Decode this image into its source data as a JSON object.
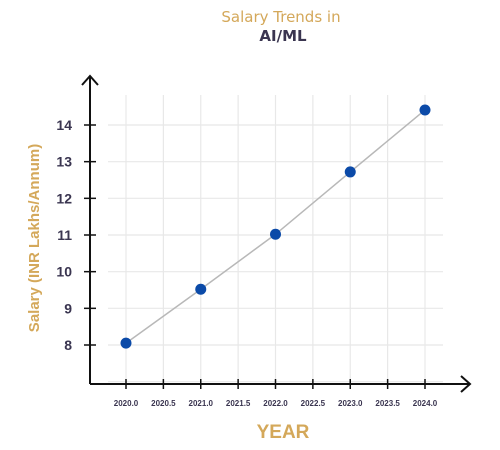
{
  "chart_data": {
    "type": "line",
    "title": "Salary Trends in",
    "subtitle": "AI/ML",
    "xlabel": "YEAR",
    "ylabel": "Salary (INR Lakhs/Annum)",
    "x": [
      2020.0,
      2021.0,
      2022.0,
      2023.0,
      2024.0
    ],
    "series": [
      {
        "values": [
          8.05,
          9.52,
          11.02,
          12.72,
          14.41
        ]
      }
    ],
    "xticks": [
      "2020.0",
      "2020.5",
      "2021.0",
      "2021.5",
      "2022.0",
      "2022.5",
      "2023.0",
      "2023.5",
      "2024.0"
    ],
    "yticks": [
      "8",
      "9",
      "10",
      "11",
      "12",
      "13",
      "14"
    ],
    "xlim": [
      2019.8,
      2024.2
    ],
    "ylim": [
      7.6,
      14.7
    ],
    "grid": true,
    "colors": {
      "line": "#b8b8b8",
      "marker": "#0b4aa8",
      "title": "#d4a85a",
      "subtitle": "#3a3550",
      "axis_labels": "#d4a85a",
      "ticks": "#3a3550"
    }
  }
}
